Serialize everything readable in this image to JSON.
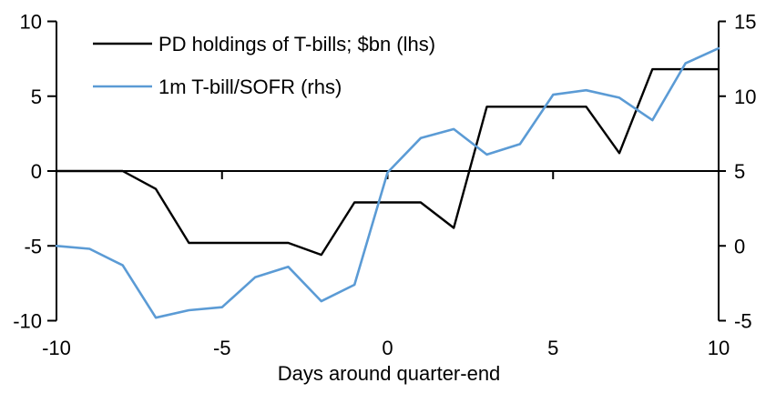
{
  "chart_data": {
    "type": "line",
    "title": "",
    "xlabel": "Days around quarter-end",
    "ylabel_left": "",
    "ylabel_right": "",
    "grid": false,
    "legend_position": "top-left",
    "x": [
      -10,
      -9,
      -8,
      -7,
      -6,
      -5,
      -4,
      -3,
      -2,
      -1,
      0,
      1,
      2,
      3,
      4,
      5,
      6,
      7,
      8,
      9,
      10
    ],
    "series": [
      {
        "name": "PD holdings of T-bills; $bn (lhs)",
        "axis": "left",
        "color": "#000000",
        "values": [
          0,
          0,
          0,
          -1.2,
          -4.8,
          -4.8,
          -4.8,
          -4.8,
          -5.6,
          -2.1,
          -2.1,
          -2.1,
          -3.8,
          4.3,
          4.3,
          4.3,
          4.3,
          1.2,
          6.8,
          6.8,
          6.8
        ]
      },
      {
        "name": "1m T-bill/SOFR (rhs)",
        "axis": "right",
        "color": "#5B9BD5",
        "values": [
          0.0,
          -0.2,
          -1.3,
          -4.8,
          -4.3,
          -4.1,
          -2.1,
          -1.4,
          -3.7,
          -2.6,
          4.9,
          7.2,
          7.8,
          6.1,
          6.8,
          10.1,
          10.4,
          9.9,
          8.4,
          12.2,
          13.2
        ]
      }
    ],
    "left_axis": {
      "ticks": [
        10,
        5,
        0,
        -5,
        -10
      ],
      "range": [
        -10,
        10
      ]
    },
    "right_axis": {
      "ticks": [
        15,
        10,
        5,
        0,
        -5
      ],
      "range": [
        -5,
        15
      ]
    },
    "x_axis": {
      "ticks": [
        -10,
        -5,
        0,
        5,
        10
      ],
      "range": [
        -10,
        10
      ]
    }
  }
}
